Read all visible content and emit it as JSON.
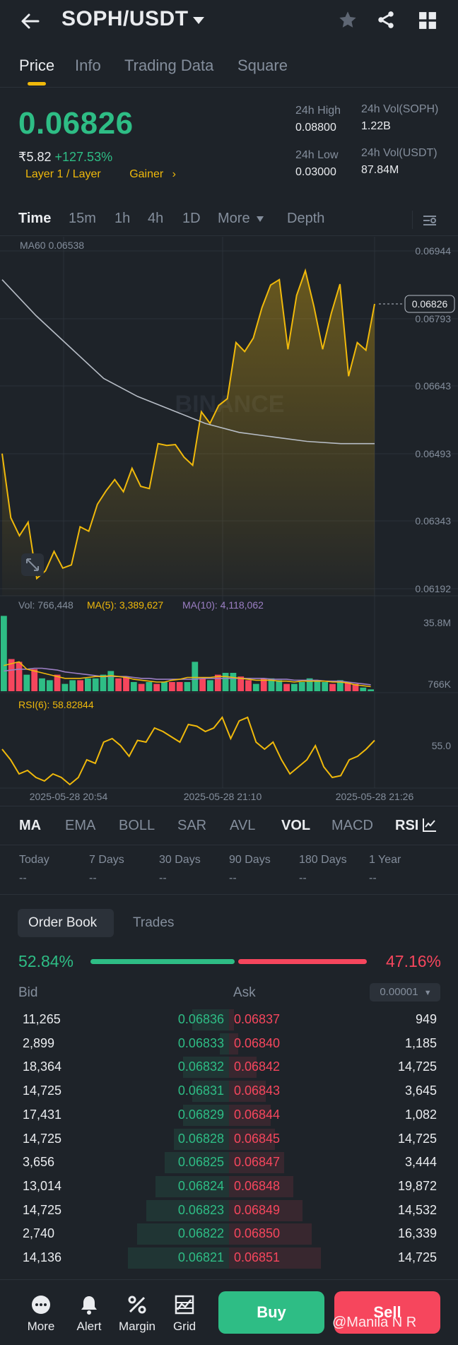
{
  "header": {
    "pair": "SOPH/USDT",
    "icons": [
      "back-arrow-icon",
      "caret-down-icon",
      "star-icon",
      "share-icon",
      "grid-icon"
    ]
  },
  "tabs": [
    "Price",
    "Info",
    "Trading Data",
    "Square"
  ],
  "price": {
    "last": "0.06826",
    "fiat": "₹5.82",
    "change": "+127.53%",
    "tag1": "Layer 1 / Layer",
    "tag2": "Gainer",
    "high_label": "24h High",
    "high": "0.08800",
    "low_label": "24h Low",
    "low": "0.03000",
    "vol_base_label": "24h Vol(SOPH)",
    "vol_base": "1.22B",
    "vol_quote_label": "24h Vol(USDT)",
    "vol_quote": "87.84M"
  },
  "timeframes": [
    "Time",
    "15m",
    "1h",
    "4h",
    "1D",
    "More",
    "Depth"
  ],
  "chart": {
    "ma60_label": "MA60 0.06538",
    "price_axis": [
      "0.06944",
      "0.06793",
      "0.06643",
      "0.06493",
      "0.06343",
      "0.06192"
    ],
    "last_price_tag": "0.06826",
    "watermark": "BINANCE",
    "vol_label": "Vol: 766,448",
    "ma5_label": "MA(5): 3,389,627",
    "ma10_label": "MA(10): 4,118,062",
    "vol_axis_top": "35.8M",
    "vol_axis_bottom": "766K",
    "rsi_label": "RSI(6): 58.82844",
    "rsi_axis": "55.0",
    "time_labels": [
      "2025-05-28 20:54",
      "2025-05-28 21:10",
      "2025-05-28 21:26"
    ],
    "colors": {
      "up": "#2ebd85",
      "down": "#f6465d",
      "accent": "#f0b90b",
      "ma60": "#b7bdc6",
      "ma10": "#9c7fc4"
    }
  },
  "chart_data": {
    "type": "line",
    "price": [
      0.06493,
      0.0635,
      0.0631,
      0.0634,
      0.06215,
      0.06232,
      0.06275,
      0.06238,
      0.06245,
      0.0633,
      0.0632,
      0.0638,
      0.0641,
      0.06435,
      0.06408,
      0.0646,
      0.0642,
      0.06415,
      0.06515,
      0.06511,
      0.06513,
      0.06485,
      0.06467,
      0.06586,
      0.0656,
      0.066,
      0.06615,
      0.0674,
      0.0672,
      0.0675,
      0.06818,
      0.06868,
      0.0688,
      0.06725,
      0.06845,
      0.069,
      0.0682,
      0.06725,
      0.06805,
      0.0687,
      0.06665,
      0.0674,
      0.06723,
      0.06826
    ],
    "ma60": [
      0.0688,
      0.068,
      0.0673,
      0.0666,
      0.0662,
      0.0659,
      0.0656,
      0.0654,
      0.0653,
      0.0652,
      0.06515,
      0.06515
    ],
    "rsi": [
      40,
      34,
      26,
      28,
      24,
      22,
      26,
      24,
      20,
      24,
      34,
      32,
      44,
      46,
      42,
      36,
      45,
      44,
      52,
      50,
      47,
      44,
      54,
      53,
      50,
      52,
      58,
      46,
      56,
      58,
      44,
      40,
      44,
      34,
      26,
      30,
      34,
      42,
      30,
      24,
      25,
      34,
      36,
      40,
      45
    ],
    "volume_candles": [
      {
        "h": 0.82,
        "up": true
      },
      {
        "h": 0.35,
        "up": false
      },
      {
        "h": 0.32,
        "up": false
      },
      {
        "h": 0.18,
        "up": true
      },
      {
        "h": 0.24,
        "up": false
      },
      {
        "h": 0.14,
        "up": true
      },
      {
        "h": 0.12,
        "up": true
      },
      {
        "h": 0.18,
        "up": false
      },
      {
        "h": 0.08,
        "up": true
      },
      {
        "h": 0.12,
        "up": true
      },
      {
        "h": 0.12,
        "up": false
      },
      {
        "h": 0.14,
        "up": true
      },
      {
        "h": 0.14,
        "up": true
      },
      {
        "h": 0.18,
        "up": true
      },
      {
        "h": 0.22,
        "up": true
      },
      {
        "h": 0.14,
        "up": false
      },
      {
        "h": 0.15,
        "up": false
      },
      {
        "h": 0.1,
        "up": true
      },
      {
        "h": 0.08,
        "up": false
      },
      {
        "h": 0.1,
        "up": true
      },
      {
        "h": 0.08,
        "up": false
      },
      {
        "h": 0.1,
        "up": true
      },
      {
        "h": 0.1,
        "up": false
      },
      {
        "h": 0.1,
        "up": false
      },
      {
        "h": 0.1,
        "up": true
      },
      {
        "h": 0.32,
        "up": true
      },
      {
        "h": 0.14,
        "up": false
      },
      {
        "h": 0.12,
        "up": true
      },
      {
        "h": 0.18,
        "up": false
      },
      {
        "h": 0.2,
        "up": true
      },
      {
        "h": 0.2,
        "up": true
      },
      {
        "h": 0.16,
        "up": false
      },
      {
        "h": 0.12,
        "up": false
      },
      {
        "h": 0.08,
        "up": true
      },
      {
        "h": 0.14,
        "up": false
      },
      {
        "h": 0.14,
        "up": true
      },
      {
        "h": 0.12,
        "up": true
      },
      {
        "h": 0.08,
        "up": false
      },
      {
        "h": 0.08,
        "up": true
      },
      {
        "h": 0.1,
        "up": true
      },
      {
        "h": 0.14,
        "up": true
      },
      {
        "h": 0.12,
        "up": true
      },
      {
        "h": 0.1,
        "up": true
      },
      {
        "h": 0.08,
        "up": false
      },
      {
        "h": 0.12,
        "up": true
      },
      {
        "h": 0.1,
        "up": false
      },
      {
        "h": 0.08,
        "up": false
      },
      {
        "h": 0.04,
        "up": true
      },
      {
        "h": 0.02,
        "up": true
      }
    ]
  },
  "indicators": [
    "MA",
    "EMA",
    "BOLL",
    "SAR",
    "AVL",
    "VOL",
    "MACD",
    "RSI"
  ],
  "performance": [
    {
      "label": "Today",
      "value": "--"
    },
    {
      "label": "7 Days",
      "value": "--"
    },
    {
      "label": "30 Days",
      "value": "--"
    },
    {
      "label": "90 Days",
      "value": "--"
    },
    {
      "label": "180 Days",
      "value": "--"
    },
    {
      "label": "1 Year",
      "value": "--"
    }
  ],
  "orderbook": {
    "tab_active": "Order Book",
    "tab_other": "Trades",
    "bid_ratio": "52.84%",
    "ask_ratio": "47.16%",
    "bid_header": "Bid",
    "ask_header": "Ask",
    "precision": "0.00001",
    "rows": [
      {
        "bq": "11,265",
        "bp": "0.06836",
        "ap": "0.06837",
        "aq": "949"
      },
      {
        "bq": "2,899",
        "bp": "0.06833",
        "ap": "0.06840",
        "aq": "1,185"
      },
      {
        "bq": "18,364",
        "bp": "0.06832",
        "ap": "0.06842",
        "aq": "14,725"
      },
      {
        "bq": "14,725",
        "bp": "0.06831",
        "ap": "0.06843",
        "aq": "3,645"
      },
      {
        "bq": "17,431",
        "bp": "0.06829",
        "ap": "0.06844",
        "aq": "1,082"
      },
      {
        "bq": "14,725",
        "bp": "0.06828",
        "ap": "0.06845",
        "aq": "14,725"
      },
      {
        "bq": "3,656",
        "bp": "0.06825",
        "ap": "0.06847",
        "aq": "3,444"
      },
      {
        "bq": "13,014",
        "bp": "0.06824",
        "ap": "0.06848",
        "aq": "19,872"
      },
      {
        "bq": "14,725",
        "bp": "0.06823",
        "ap": "0.06849",
        "aq": "14,532"
      },
      {
        "bq": "2,740",
        "bp": "0.06822",
        "ap": "0.06850",
        "aq": "16,339"
      },
      {
        "bq": "14,136",
        "bp": "0.06821",
        "ap": "0.06851",
        "aq": "14,725"
      }
    ]
  },
  "bottom": {
    "more": "More",
    "alert": "Alert",
    "margin": "Margin",
    "grid": "Grid",
    "buy": "Buy",
    "sell": "Sell",
    "overlay": "@Manila N R"
  }
}
